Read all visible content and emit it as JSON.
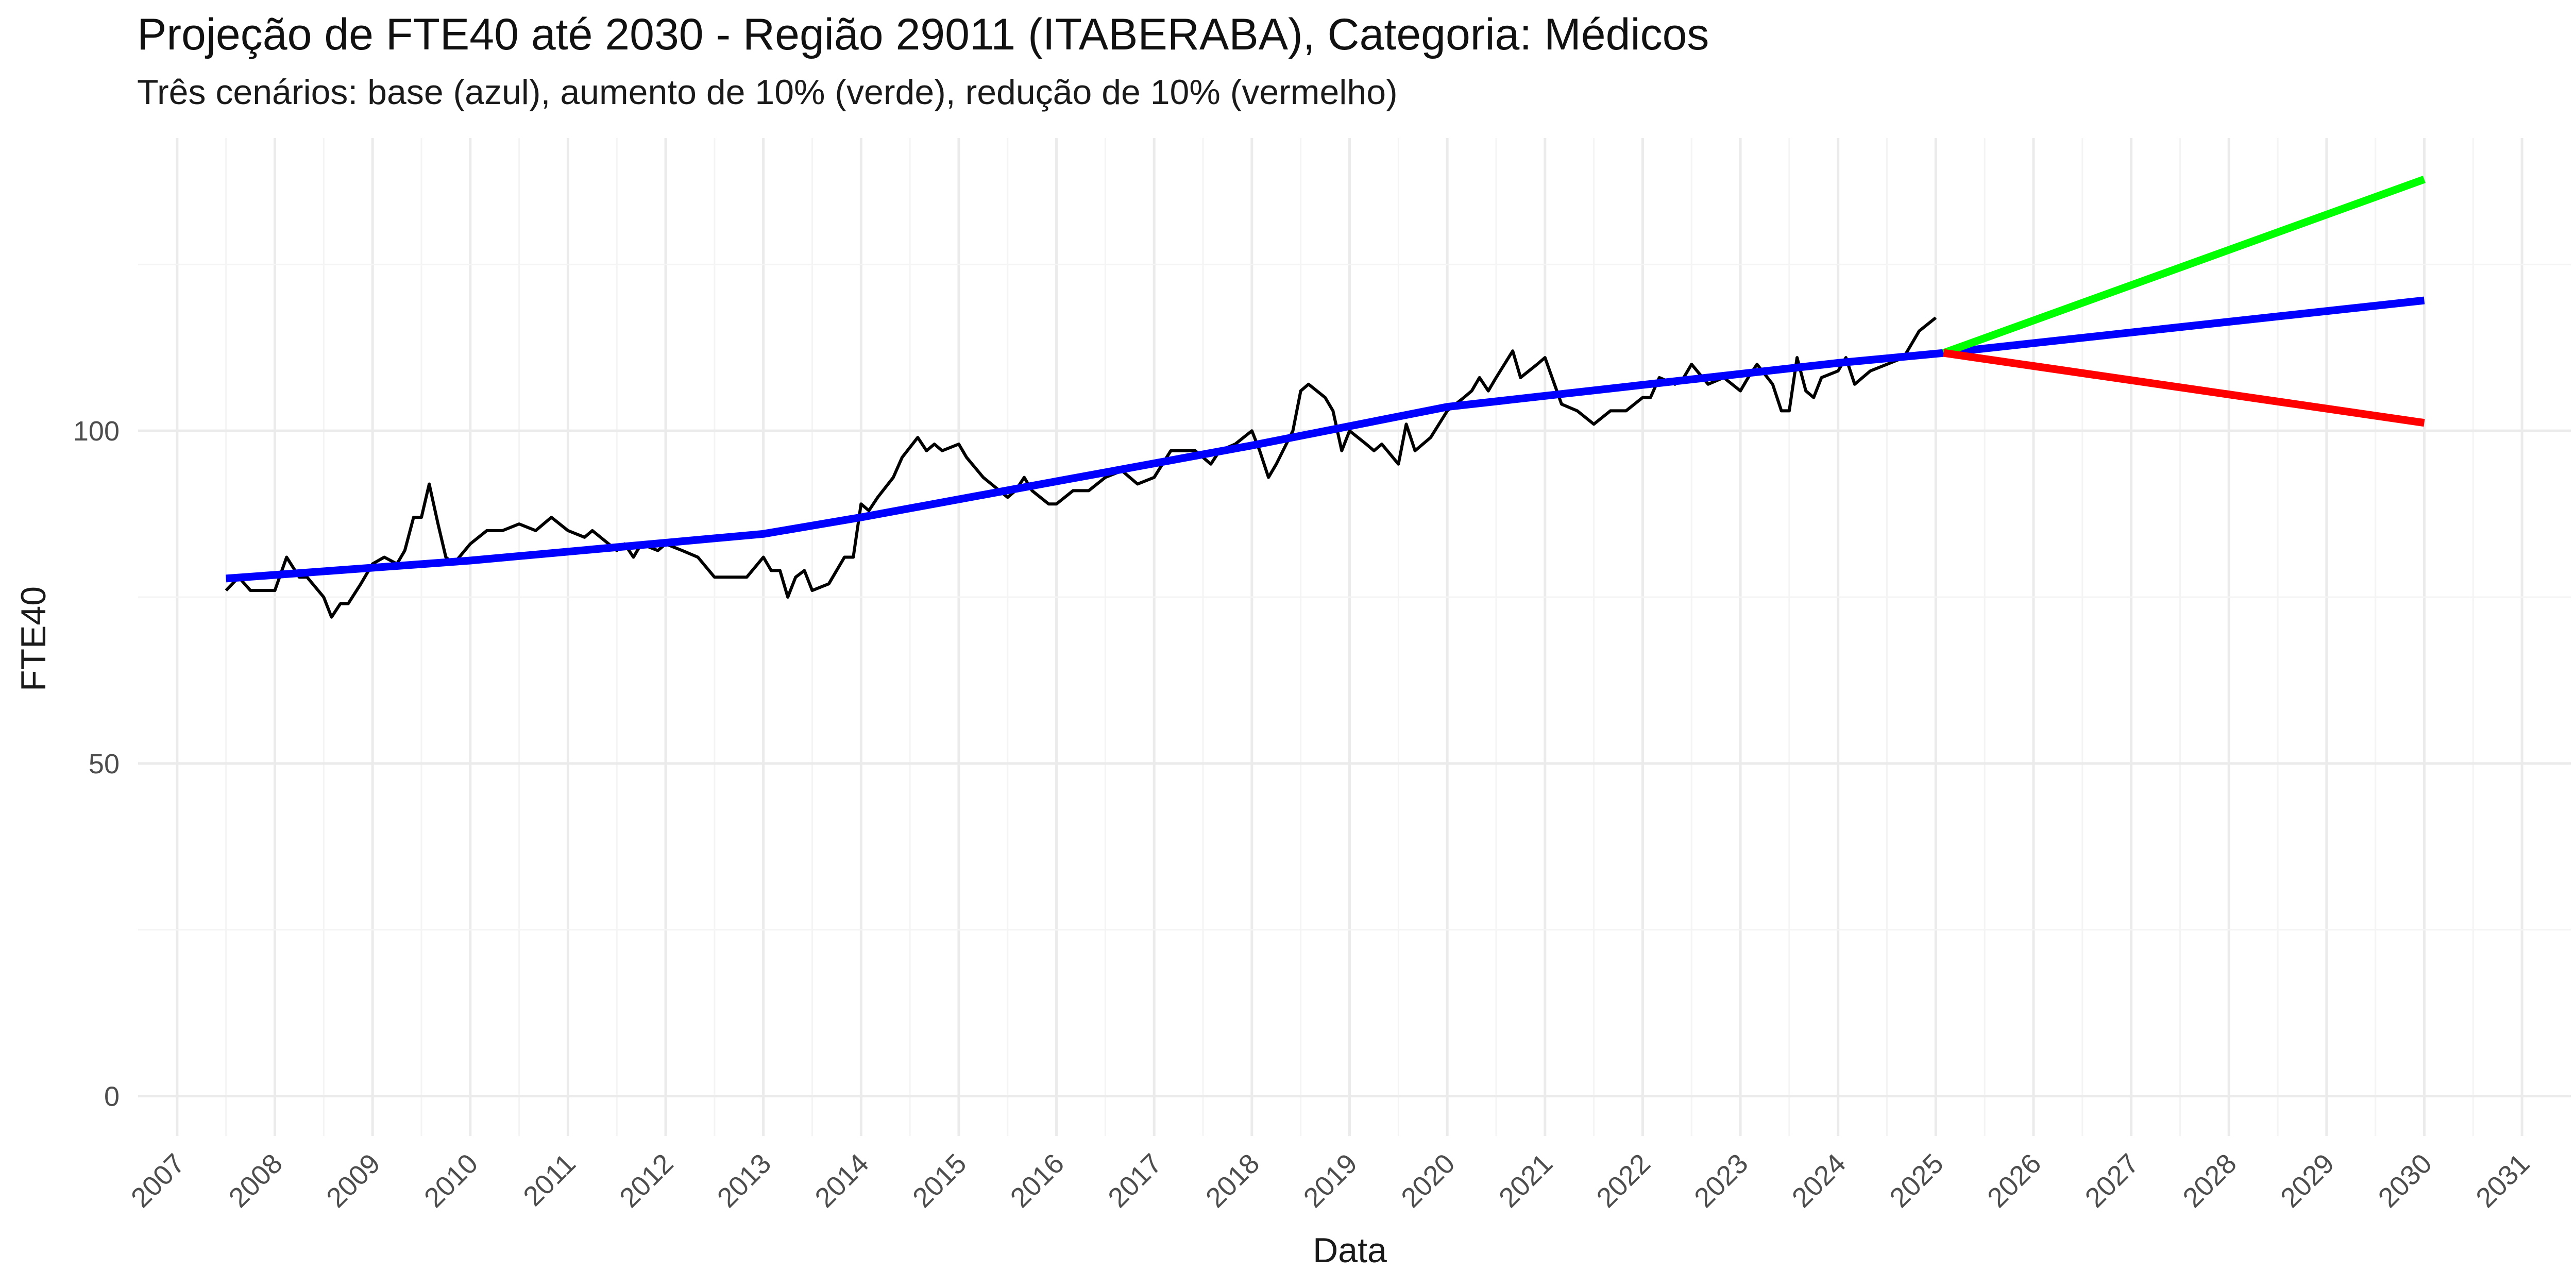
{
  "chart_data": {
    "type": "line",
    "title": "Projeção de FTE40 até 2030 - Região 29011 (ITABERABA), Categoria: Médicos",
    "subtitle": "Três cenários: base (azul), aumento de 10% (verde), redução de 10% (vermelho)",
    "xlabel": "Data",
    "ylabel": "FTE40",
    "xlim": [
      2006.6,
      2031.5
    ],
    "ylim": [
      -6,
      144
    ],
    "x_ticks": [
      "2007",
      "2008",
      "2009",
      "2010",
      "2011",
      "2012",
      "2013",
      "2014",
      "2015",
      "2016",
      "2017",
      "2018",
      "2019",
      "2020",
      "2021",
      "2022",
      "2023",
      "2024",
      "2025",
      "2026",
      "2027",
      "2028",
      "2029",
      "2030",
      "2031"
    ],
    "y_ticks": [
      "0",
      "50",
      "100"
    ],
    "grid": true,
    "legend": "none",
    "series": [
      {
        "color": "#000000",
        "x": [
          2007.5,
          2007.63,
          2007.75,
          2007.88,
          2008.0,
          2008.12,
          2008.25,
          2008.33,
          2008.5,
          2008.58,
          2008.67,
          2008.75,
          2008.88,
          2009.0,
          2009.12,
          2009.25,
          2009.33,
          2009.42,
          2009.5,
          2009.58,
          2009.67,
          2009.75,
          2009.83,
          2010.0,
          2010.17,
          2010.33,
          2010.5,
          2010.67,
          2010.83,
          2011.0,
          2011.17,
          2011.25,
          2011.5,
          2011.58,
          2011.67,
          2011.75,
          2011.92,
          2012.0,
          2012.17,
          2012.33,
          2012.5,
          2012.67,
          2012.83,
          2013.0,
          2013.08,
          2013.17,
          2013.25,
          2013.33,
          2013.42,
          2013.5,
          2013.67,
          2013.83,
          2013.92,
          2014.0,
          2014.08,
          2014.17,
          2014.33,
          2014.42,
          2014.58,
          2014.67,
          2014.75,
          2014.83,
          2015.0,
          2015.08,
          2015.25,
          2015.5,
          2015.58,
          2015.67,
          2015.75,
          2015.92,
          2016.0,
          2016.17,
          2016.33,
          2016.5,
          2016.67,
          2016.83,
          2017.0,
          2017.17,
          2017.42,
          2017.58,
          2017.67,
          2017.83,
          2018.0,
          2018.08,
          2018.17,
          2018.25,
          2018.42,
          2018.5,
          2018.58,
          2018.75,
          2018.83,
          2018.92,
          2019.0,
          2019.17,
          2019.25,
          2019.33,
          2019.5,
          2019.58,
          2019.67,
          2019.83,
          2020.0,
          2020.17,
          2020.25,
          2020.33,
          2020.42,
          2020.5,
          2020.67,
          2020.75,
          2020.92,
          2021.0,
          2021.17,
          2021.33,
          2021.5,
          2021.67,
          2021.83,
          2022.0,
          2022.08,
          2022.17,
          2022.33,
          2022.42,
          2022.5,
          2022.67,
          2022.83,
          2023.0,
          2023.08,
          2023.17,
          2023.33,
          2023.42,
          2023.5,
          2023.58,
          2023.67,
          2023.75,
          2023.83,
          2024.0,
          2024.08,
          2024.17,
          2024.33,
          2024.5,
          2024.67,
          2024.83,
          2025.0
        ],
        "y": [
          76,
          78,
          76,
          76,
          76,
          81,
          78,
          78,
          75,
          72,
          74,
          74,
          77,
          80,
          81,
          80,
          82,
          87,
          87,
          92,
          86,
          81,
          80,
          83,
          85,
          85,
          86,
          85,
          87,
          85,
          84,
          85,
          82,
          83,
          81,
          83,
          82,
          83,
          82,
          81,
          78,
          78,
          78,
          81,
          79,
          79,
          75,
          78,
          79,
          76,
          77,
          81,
          81,
          89,
          88,
          90,
          93,
          96,
          99,
          97,
          98,
          97,
          98,
          96,
          93,
          90,
          91,
          93,
          91,
          89,
          89,
          91,
          91,
          93,
          94,
          92,
          93,
          97,
          97,
          95,
          97,
          98,
          100,
          97,
          93,
          95,
          100,
          106,
          107,
          105,
          103,
          97,
          100,
          98,
          97,
          98,
          95,
          101,
          97,
          99,
          103,
          105,
          106,
          108,
          106,
          108,
          112,
          108,
          110,
          111,
          104,
          103,
          101,
          103,
          103,
          105,
          105,
          108,
          107,
          108,
          110,
          107,
          108,
          106,
          108,
          110,
          107,
          103,
          103,
          111,
          106,
          105,
          108,
          109,
          111,
          107,
          109,
          110,
          111,
          115,
          117
        ]
      },
      {
        "color": "#0000ff",
        "x": [
          2007.5,
          2010.0,
          2013.0,
          2014.0,
          2016.0,
          2018.0,
          2020.0,
          2022.0,
          2024.0,
          2025.08,
          2030.0
        ],
        "y": [
          77.8,
          80.5,
          84.5,
          87.0,
          92.4,
          97.8,
          103.6,
          106.9,
          110.2,
          111.7,
          119.6
        ]
      },
      {
        "color": "#00ff00",
        "x": [
          2025.08,
          2030.0
        ],
        "y": [
          111.7,
          137.8
        ]
      },
      {
        "color": "#ff0000",
        "x": [
          2025.08,
          2030.0
        ],
        "y": [
          111.7,
          101.2
        ]
      }
    ]
  }
}
